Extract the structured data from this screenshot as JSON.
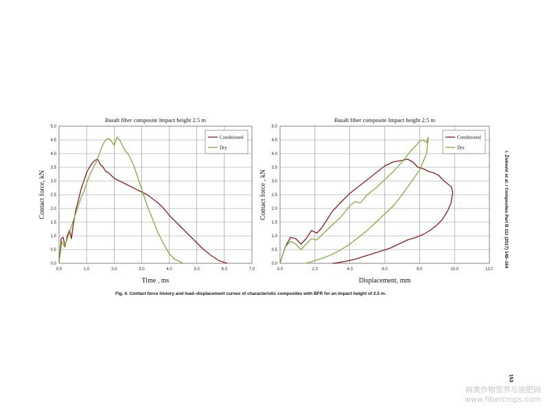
{
  "chart_data": [
    {
      "type": "line",
      "title": "Basalt fiber composite Impact height 2.5 m",
      "xlabel": "Time , ms",
      "ylabel": "Contact force, kN",
      "xlim": [
        0,
        7
      ],
      "ylim": [
        0,
        5
      ],
      "xticks": [
        "0.0",
        "1.0",
        "2.0",
        "3.0",
        "4.0",
        "5.0",
        "6.0",
        "7.0"
      ],
      "yticks": [
        "0.0",
        "0.5",
        "1.0",
        "1.5",
        "2.0",
        "2.5",
        "3.0",
        "3.5",
        "4.0",
        "4.5",
        "5.0"
      ],
      "grid": true,
      "legend_position": "top-right",
      "series": [
        {
          "name": "Conditioned",
          "color": "#8b1a1a",
          "x": [
            0,
            0.08,
            0.15,
            0.22,
            0.3,
            0.38,
            0.45,
            0.5,
            0.55,
            0.6,
            0.7,
            0.8,
            0.9,
            1.0,
            1.1,
            1.2,
            1.3,
            1.4,
            1.5,
            1.6,
            1.7,
            1.8,
            1.9,
            2.0,
            2.1,
            2.2,
            2.3,
            2.4,
            2.5,
            2.6,
            2.8,
            3.0,
            3.2,
            3.4,
            3.6,
            3.8,
            4.0,
            4.3,
            4.6,
            4.9,
            5.2,
            5.5,
            5.8,
            6.0,
            6.1
          ],
          "y": [
            0,
            0.9,
            0.95,
            0.6,
            1.0,
            1.2,
            0.9,
            1.3,
            1.6,
            1.9,
            2.3,
            2.7,
            3.0,
            3.3,
            3.5,
            3.65,
            3.75,
            3.8,
            3.6,
            3.5,
            3.35,
            3.3,
            3.2,
            3.1,
            3.05,
            3.0,
            2.95,
            2.9,
            2.85,
            2.8,
            2.7,
            2.6,
            2.5,
            2.35,
            2.2,
            2.0,
            1.75,
            1.45,
            1.15,
            0.85,
            0.55,
            0.3,
            0.1,
            0.03,
            0.0
          ]
        },
        {
          "name": "Dry",
          "color": "#7fac3c",
          "x": [
            0,
            0.1,
            0.2,
            0.3,
            0.4,
            0.5,
            0.6,
            0.7,
            0.8,
            0.9,
            1.0,
            1.1,
            1.2,
            1.3,
            1.4,
            1.5,
            1.6,
            1.7,
            1.8,
            1.9,
            2.0,
            2.1,
            2.2,
            2.3,
            2.4,
            2.5,
            2.6,
            2.7,
            2.8,
            2.9,
            3.0,
            3.2,
            3.4,
            3.6,
            3.8,
            4.0,
            4.2,
            4.4,
            4.5
          ],
          "y": [
            0,
            0.8,
            0.6,
            0.9,
            1.2,
            1.5,
            1.8,
            2.1,
            2.4,
            2.6,
            2.9,
            3.2,
            3.4,
            3.6,
            3.8,
            4.1,
            4.35,
            4.5,
            4.55,
            4.45,
            4.3,
            4.6,
            4.5,
            4.3,
            4.1,
            4.0,
            3.8,
            3.6,
            3.3,
            3.0,
            2.7,
            2.1,
            1.6,
            1.1,
            0.7,
            0.35,
            0.15,
            0.05,
            0.0
          ]
        }
      ]
    },
    {
      "type": "line",
      "title": "Basalt fiber composite Impact height 2.5 m",
      "xlabel": "Displacement, mm",
      "ylabel": "Contact force , kN",
      "xlim": [
        0,
        12
      ],
      "ylim": [
        0,
        5
      ],
      "xticks": [
        "0.0",
        "2.0",
        "4.0",
        "6.0",
        "8.0",
        "10.0",
        "12.0"
      ],
      "yticks": [
        "0.0",
        "0.5",
        "1.0",
        "1.5",
        "2.0",
        "2.5",
        "3.0",
        "3.5",
        "4.0",
        "4.5",
        "5.0"
      ],
      "grid": true,
      "legend_position": "top-right",
      "series": [
        {
          "name": "Conditioned",
          "color": "#8b1a1a",
          "x": [
            0,
            0.3,
            0.6,
            0.9,
            1.2,
            1.5,
            1.8,
            2.1,
            2.4,
            2.7,
            3.0,
            3.3,
            3.6,
            4.0,
            4.5,
            5.0,
            5.5,
            6.0,
            6.5,
            7.0,
            7.3,
            7.6,
            7.9,
            8.2,
            8.5,
            8.8,
            9.1,
            9.4,
            9.6,
            9.8,
            9.9,
            9.8,
            9.6,
            9.3,
            9.0,
            8.6,
            8.2,
            7.8,
            7.3,
            6.8,
            6.3,
            5.8,
            5.3,
            4.8,
            4.3,
            3.8,
            3.3,
            3.0
          ],
          "y": [
            0,
            0.6,
            0.95,
            0.9,
            0.7,
            0.9,
            1.2,
            1.1,
            1.3,
            1.6,
            1.9,
            2.1,
            2.3,
            2.55,
            2.8,
            3.05,
            3.3,
            3.55,
            3.7,
            3.75,
            3.8,
            3.7,
            3.5,
            3.45,
            3.35,
            3.3,
            3.2,
            3.0,
            2.9,
            2.8,
            2.6,
            2.2,
            1.9,
            1.6,
            1.4,
            1.2,
            1.05,
            0.95,
            0.85,
            0.7,
            0.55,
            0.45,
            0.35,
            0.25,
            0.15,
            0.08,
            0.02,
            0.0
          ]
        },
        {
          "name": "Dry",
          "color": "#7fac3c",
          "x": [
            0,
            0.3,
            0.6,
            0.9,
            1.2,
            1.5,
            1.8,
            2.1,
            2.5,
            3.0,
            3.5,
            4.0,
            4.3,
            4.6,
            5.0,
            5.5,
            6.0,
            6.5,
            7.0,
            7.5,
            7.8,
            8.0,
            8.2,
            8.4,
            8.5,
            8.4,
            8.2,
            8.0,
            7.5,
            7.0,
            6.5,
            6.0,
            5.5,
            5.0,
            4.5,
            4.0,
            3.5,
            3.0,
            2.5,
            2.0,
            1.5
          ],
          "y": [
            0,
            0.6,
            0.8,
            0.7,
            0.5,
            0.7,
            0.9,
            0.85,
            1.1,
            1.4,
            1.7,
            2.1,
            2.25,
            2.2,
            2.5,
            2.75,
            3.05,
            3.35,
            3.7,
            4.1,
            4.3,
            4.45,
            4.5,
            4.4,
            4.6,
            4.0,
            3.7,
            3.4,
            2.95,
            2.5,
            2.1,
            1.8,
            1.5,
            1.2,
            0.95,
            0.7,
            0.5,
            0.33,
            0.2,
            0.1,
            0.0
          ]
        }
      ]
    }
  ],
  "caption": "Fig. 4. Contact force history and load–displacement curves of characteristic composites with BFR for an impact height of 2.5 m.",
  "side_header": "I. Živković et al. / Composites Part B 111 (2017) 148–164",
  "page_number": "153",
  "watermark_line1": "麻类作物营养与施肥网",
  "watermark_line2": "www.fibercrops.com"
}
